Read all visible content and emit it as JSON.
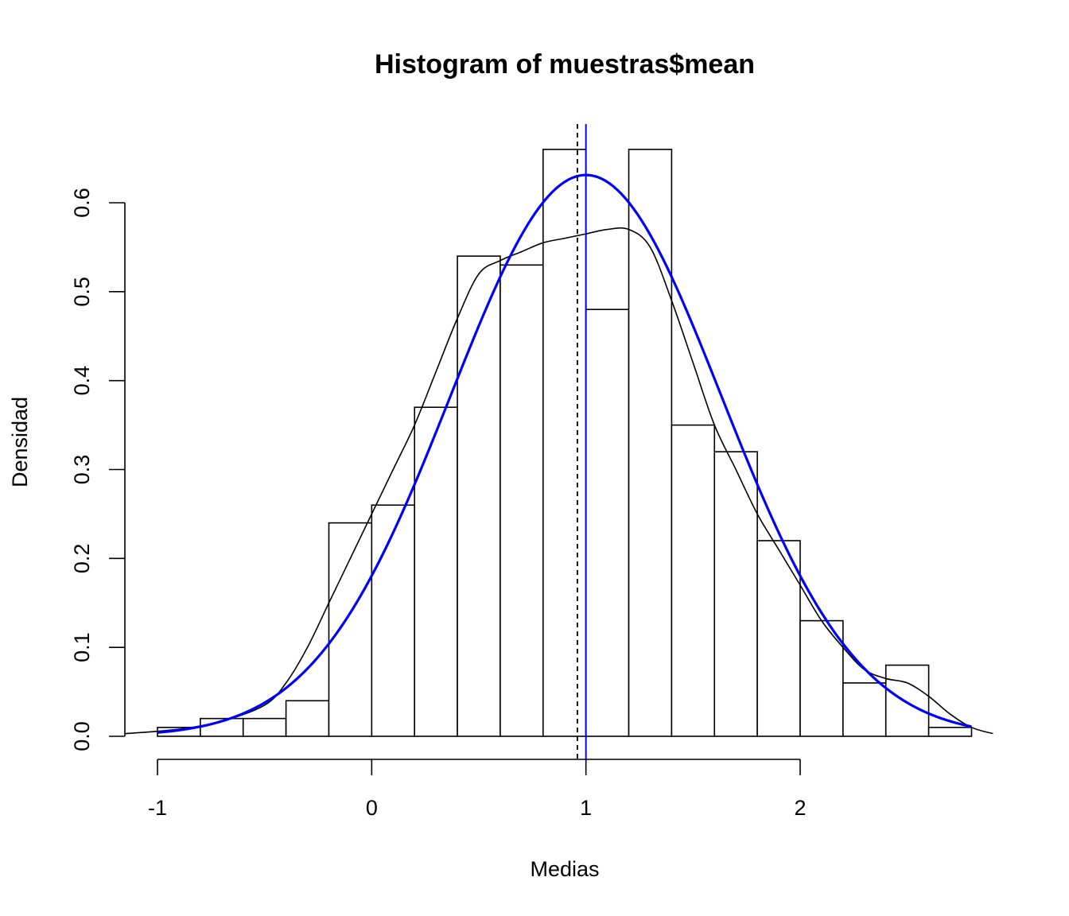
{
  "chart_data": {
    "type": "bar",
    "title": "Histogram of muestras$mean",
    "xlabel": "Medias",
    "ylabel": "Densidad",
    "xlim": [
      -1.15,
      2.95
    ],
    "ylim": [
      0,
      0.65
    ],
    "x_ticks": [
      -1,
      0,
      1,
      2
    ],
    "x_tick_labels": [
      "-1",
      "0",
      "1",
      "2"
    ],
    "y_ticks": [
      0,
      0.1,
      0.2,
      0.3,
      0.4,
      0.5,
      0.6
    ],
    "y_tick_labels": [
      "0.0",
      "0.1",
      "0.2",
      "0.3",
      "0.4",
      "0.5",
      "0.6"
    ],
    "bins": {
      "edges": [
        -1.0,
        -0.8,
        -0.6,
        -0.4,
        -0.2,
        0.0,
        0.2,
        0.4,
        0.6,
        0.8,
        1.0,
        1.2,
        1.4,
        1.6,
        1.8,
        2.0,
        2.2,
        2.4,
        2.6,
        2.8
      ],
      "density": [
        0.01,
        0.02,
        0.02,
        0.04,
        0.24,
        0.26,
        0.37,
        0.54,
        0.53,
        0.66,
        0.48,
        0.66,
        0.35,
        0.32,
        0.22,
        0.13,
        0.06,
        0.08,
        0.01
      ]
    },
    "series": [
      {
        "kind": "kernel-density",
        "color": "#000000",
        "x": [
          -1.15,
          -0.9,
          -0.7,
          -0.5,
          -0.4,
          -0.3,
          -0.2,
          -0.1,
          0.0,
          0.1,
          0.2,
          0.3,
          0.4,
          0.5,
          0.6,
          0.7,
          0.8,
          0.9,
          1.0,
          1.1,
          1.2,
          1.3,
          1.4,
          1.5,
          1.6,
          1.7,
          1.8,
          1.9,
          2.0,
          2.1,
          2.2,
          2.3,
          2.4,
          2.5,
          2.6,
          2.7,
          2.8,
          2.9
        ],
        "y": [
          0.003,
          0.008,
          0.017,
          0.035,
          0.06,
          0.1,
          0.15,
          0.2,
          0.25,
          0.3,
          0.35,
          0.41,
          0.47,
          0.52,
          0.535,
          0.545,
          0.555,
          0.56,
          0.565,
          0.57,
          0.57,
          0.55,
          0.49,
          0.42,
          0.35,
          0.3,
          0.25,
          0.21,
          0.17,
          0.13,
          0.1,
          0.075,
          0.065,
          0.06,
          0.045,
          0.025,
          0.01,
          0.003
        ]
      },
      {
        "kind": "normal-fit",
        "color": "#0000ff",
        "mean": 1.0,
        "sd": 0.632,
        "x_range": [
          -1.0,
          2.8
        ]
      }
    ],
    "vlines": [
      {
        "x": 0.96,
        "style": "dashed",
        "color": "#000000"
      },
      {
        "x": 1.0,
        "style": "solid",
        "color": "#0000ff"
      }
    ]
  }
}
